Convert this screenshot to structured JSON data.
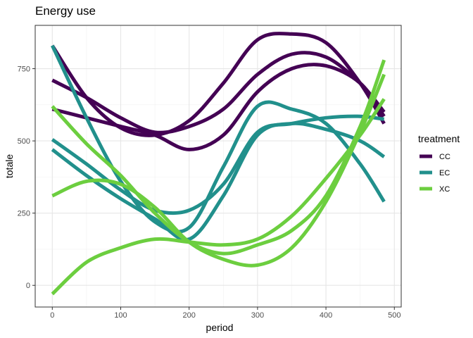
{
  "chart_data": {
    "type": "line",
    "title": "Energy use",
    "xlabel": "period",
    "ylabel": "totale",
    "xlim": [
      -25,
      510
    ],
    "ylim": [
      -75,
      900
    ],
    "x_ticks": [
      0,
      100,
      200,
      300,
      400,
      500
    ],
    "y_ticks": [
      0,
      250,
      500,
      750
    ],
    "grid": true,
    "legend": {
      "title": "treatment",
      "position": "right",
      "entries": [
        {
          "label": "CC",
          "color": "#440154"
        },
        {
          "label": "EC",
          "color": "#21908C"
        },
        {
          "label": "XC",
          "color": "#6CCE3F"
        }
      ]
    },
    "series": [
      {
        "group": "CC",
        "color": "#440154",
        "x": [
          0,
          50,
          100,
          150,
          200,
          250,
          300,
          350,
          400,
          450,
          485
        ],
        "y": [
          830,
          650,
          545,
          520,
          570,
          700,
          850,
          870,
          840,
          700,
          560
        ]
      },
      {
        "group": "CC",
        "color": "#440154",
        "x": [
          0,
          50,
          100,
          150,
          200,
          250,
          300,
          350,
          400,
          450,
          485
        ],
        "y": [
          710,
          650,
          580,
          530,
          550,
          610,
          730,
          800,
          790,
          700,
          600
        ]
      },
      {
        "group": "CC",
        "color": "#440154",
        "x": [
          0,
          50,
          100,
          150,
          200,
          250,
          300,
          350,
          400,
          450,
          485
        ],
        "y": [
          610,
          580,
          550,
          520,
          470,
          520,
          670,
          750,
          760,
          700,
          585
        ]
      },
      {
        "group": "EC",
        "color": "#21908C",
        "x": [
          0,
          50,
          100,
          150,
          200,
          250,
          300,
          350,
          400,
          450,
          485
        ],
        "y": [
          830,
          580,
          360,
          220,
          200,
          410,
          620,
          610,
          560,
          420,
          290
        ]
      },
      {
        "group": "EC",
        "color": "#21908C",
        "x": [
          0,
          50,
          100,
          150,
          200,
          250,
          300,
          350,
          400,
          450,
          485
        ],
        "y": [
          505,
          420,
          330,
          260,
          260,
          350,
          530,
          560,
          580,
          585,
          575
        ]
      },
      {
        "group": "EC",
        "color": "#21908C",
        "x": [
          0,
          50,
          100,
          150,
          200,
          250,
          300,
          350,
          400,
          450,
          485
        ],
        "y": [
          470,
          380,
          300,
          230,
          160,
          310,
          520,
          560,
          540,
          500,
          445
        ]
      },
      {
        "group": "XC",
        "color": "#6CCE3F",
        "x": [
          0,
          50,
          100,
          150,
          200,
          250,
          300,
          350,
          400,
          450,
          485
        ],
        "y": [
          620,
          490,
          380,
          250,
          150,
          110,
          140,
          190,
          310,
          550,
          780
        ]
      },
      {
        "group": "XC",
        "color": "#6CCE3F",
        "x": [
          0,
          50,
          100,
          150,
          200,
          250,
          300,
          350,
          400,
          450,
          485
        ],
        "y": [
          310,
          360,
          350,
          270,
          150,
          90,
          70,
          130,
          290,
          530,
          730
        ]
      },
      {
        "group": "XC",
        "color": "#6CCE3F",
        "x": [
          0,
          50,
          100,
          150,
          200,
          250,
          300,
          350,
          400,
          450,
          485
        ],
        "y": [
          -30,
          80,
          130,
          160,
          150,
          140,
          160,
          240,
          370,
          520,
          645
        ]
      }
    ]
  }
}
